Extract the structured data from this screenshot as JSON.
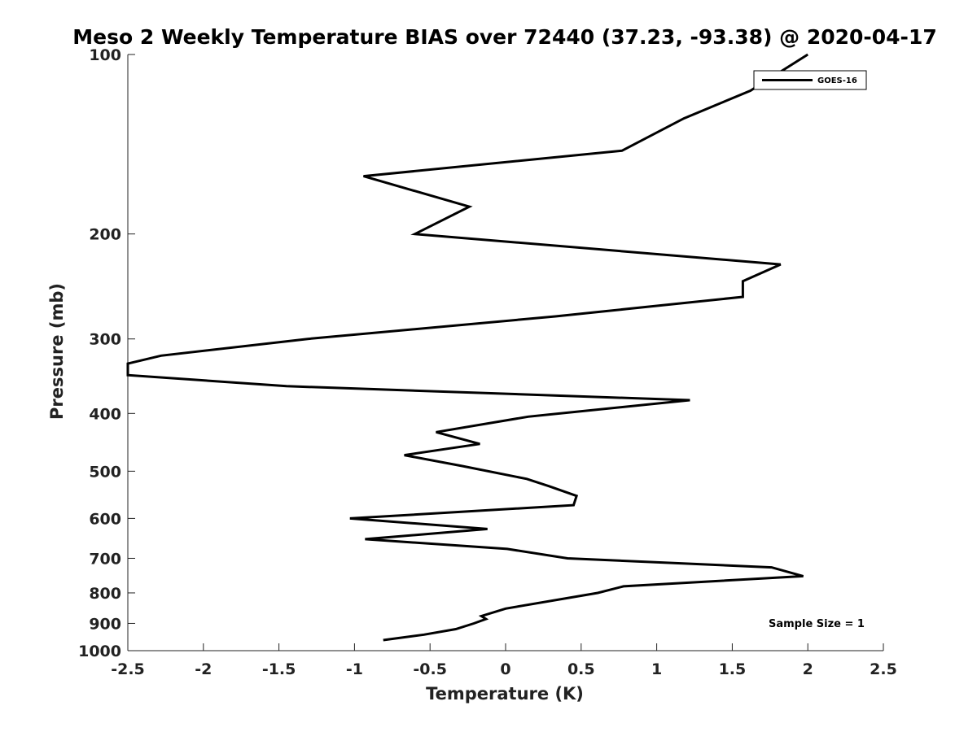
{
  "chart_data": {
    "type": "line",
    "title": "Meso 2 Weekly Temperature BIAS over 72440 (37.23, -93.38) @ 2020-04-17",
    "xlabel": "Temperature (K)",
    "ylabel": "Pressure (mb)",
    "xlim": [
      -2.5,
      2.5
    ],
    "ylim": [
      100,
      1000
    ],
    "y_scale": "log",
    "y_reversed": true,
    "grid": false,
    "x_ticks": [
      -2.5,
      -2,
      -1.5,
      -1,
      -0.5,
      0,
      0.5,
      1,
      1.5,
      2,
      2.5
    ],
    "x_tick_labels": [
      "-2.5",
      "-2",
      "-1.5",
      "-1",
      "-0.5",
      "0",
      "0.5",
      "1",
      "1.5",
      "2",
      "2.5"
    ],
    "y_ticks": [
      100,
      200,
      300,
      400,
      500,
      600,
      700,
      800,
      900,
      1000
    ],
    "y_tick_labels": [
      "100",
      "200",
      "300",
      "400",
      "500",
      "600",
      "700",
      "800",
      "900",
      "1000"
    ],
    "legend_position": "top-right",
    "legend_entries": [
      "GOES-16"
    ],
    "annotation": "Sample Size = 1",
    "series": [
      {
        "name": "GOES-16",
        "color": "#000000",
        "points": [
          [
            -0.81,
            960
          ],
          [
            -0.54,
            940
          ],
          [
            -0.33,
            920
          ],
          [
            -0.21,
            900
          ],
          [
            -0.13,
            885
          ],
          [
            -0.16,
            875
          ],
          [
            0.0,
            850
          ],
          [
            0.61,
            800
          ],
          [
            0.78,
            780
          ],
          [
            1.97,
            750
          ],
          [
            1.76,
            725
          ],
          [
            0.41,
            700
          ],
          [
            0.01,
            675
          ],
          [
            -0.93,
            650
          ],
          [
            -0.12,
            625
          ],
          [
            -1.03,
            600
          ],
          [
            0.45,
            570
          ],
          [
            0.47,
            550
          ],
          [
            0.29,
            530
          ],
          [
            0.14,
            515
          ],
          [
            -0.29,
            490
          ],
          [
            -0.67,
            470
          ],
          [
            -0.17,
            450
          ],
          [
            -0.46,
            430
          ],
          [
            0.15,
            405
          ],
          [
            1.22,
            380
          ],
          [
            -1.45,
            360
          ],
          [
            -2.5,
            345
          ],
          [
            -2.5,
            330
          ],
          [
            -2.28,
            320
          ],
          [
            -1.31,
            300
          ],
          [
            0.33,
            275
          ],
          [
            1.57,
            255
          ],
          [
            1.57,
            240
          ],
          [
            1.82,
            225
          ],
          [
            -0.6,
            200
          ],
          [
            -0.24,
            180
          ],
          [
            -0.94,
            160
          ],
          [
            0.77,
            145
          ],
          [
            1.18,
            128
          ],
          [
            1.62,
            115
          ],
          [
            2.0,
            100
          ]
        ]
      }
    ]
  }
}
